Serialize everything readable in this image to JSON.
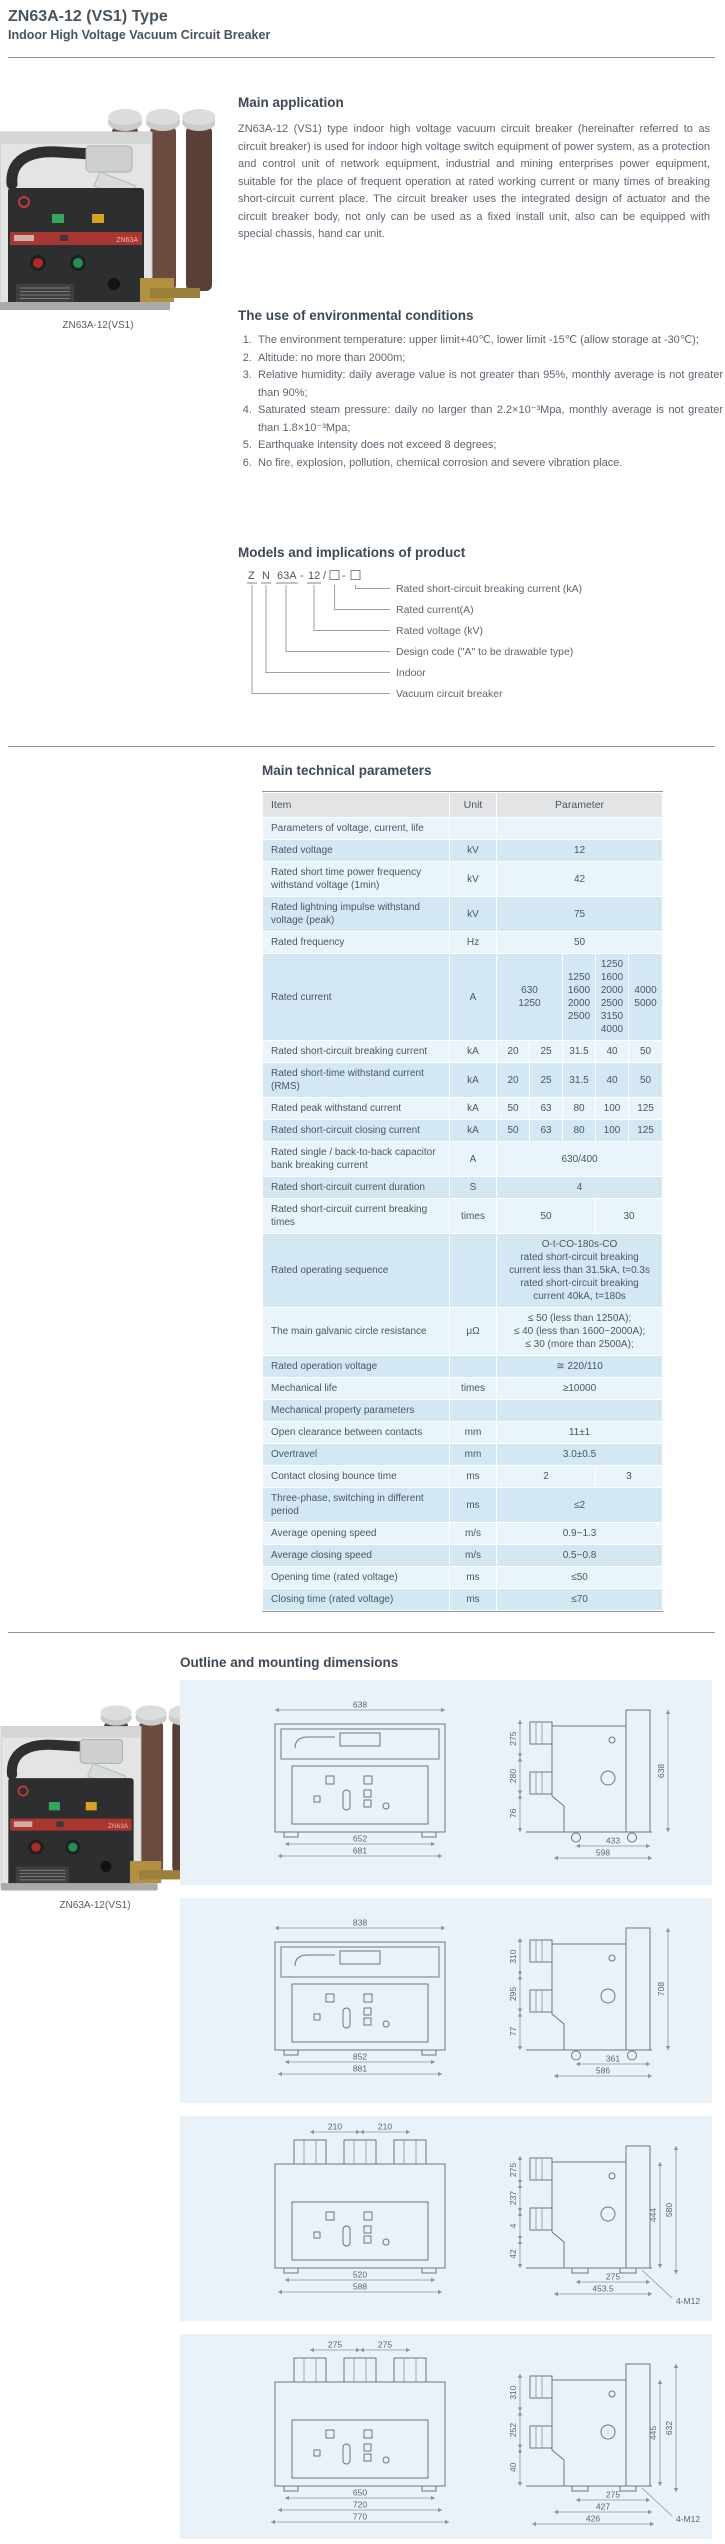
{
  "page": {
    "title": "ZN63A-12 (VS1) Type",
    "subtitle": "Indoor High Voltage Vacuum Circuit Breaker"
  },
  "photo": {
    "caption": "ZN63A-12(VS1)",
    "badge": "ZN63A"
  },
  "sections": {
    "main_application": {
      "heading": "Main application",
      "body": "ZN63A-12 (VS1) type indoor high voltage vacuum circuit breaker (hereinafter referred to as circuit breaker) is used for indoor high voltage switch equipment of power system, as a protection and control unit of network equipment, industrial and mining enterprises power equipment, suitable for the place of frequent operation at rated working current or many times of breaking short-circuit current place. The circuit breaker uses the integrated design of actuator and the circuit breaker body, not only can be used as a fixed install unit, also can be equipped with special chassis, hand car unit."
    },
    "environment": {
      "heading": "The use of environmental conditions",
      "items": [
        "The environment temperature: upper limit+40℃, lower limit -15℃ (allow storage at -30℃);",
        "Altitude: no more than 2000m;",
        "Relative humidity: daily average value is not greater than 95%, monthly average is not greater than 90%;",
        "Saturated steam pressure: daily no larger than 2.2×10⁻³Mpa, monthly average is not greater than 1.8×10⁻³Mpa;",
        "Earthquake intensity does not exceed 8 degrees;",
        "No fire, explosion, pollution, chemical corrosion and severe vibration place."
      ]
    },
    "models": {
      "heading": "Models and implications of product",
      "code": {
        "part1": "Z",
        "part2": "N",
        "part3": "63A",
        "sep1": "-",
        "part4": "12",
        "sep2": "/",
        "sep3": "-"
      },
      "labels": [
        "Rated short-circuit breaking current (kA)",
        "Rated current(A)",
        "Rated voltage (kV)",
        "Design code (\"A\" to be drawable type)",
        "Indoor",
        "Vacuum circuit breaker"
      ]
    },
    "parameters": {
      "heading": "Main technical parameters",
      "table": {
        "headers": {
          "item": "Item",
          "unit": "Unit",
          "param": "Parameter"
        },
        "rows": [
          {
            "item": "Parameters of voltage, current, life",
            "unit": "",
            "cells": [
              {
                "t": "",
                "s": 5
              }
            ]
          },
          {
            "item": "Rated voltage",
            "unit": "kV",
            "cells": [
              {
                "t": "12",
                "s": 5
              }
            ]
          },
          {
            "item": "Rated short time power frequency withstand voltage (1min)",
            "unit": "kV",
            "cells": [
              {
                "t": "42",
                "s": 5
              }
            ]
          },
          {
            "item": "Rated lightning impulse withstand voltage (peak)",
            "unit": "kV",
            "cells": [
              {
                "t": "75",
                "s": 5
              }
            ]
          },
          {
            "item": "Rated frequency",
            "unit": "Hz",
            "cells": [
              {
                "t": "50",
                "s": 5
              }
            ]
          },
          {
            "item": "Rated current",
            "unit": "A",
            "cells": [
              {
                "t": "630\n1250",
                "s": 2
              },
              {
                "t": "1250\n1600\n2000\n2500",
                "s": 1
              },
              {
                "t": "1250\n1600\n2000\n2500\n3150\n4000",
                "s": 1
              },
              {
                "t": "4000\n5000",
                "s": 1
              }
            ]
          },
          {
            "item": "Rated short-circuit breaking current",
            "unit": "kA",
            "cells": [
              {
                "t": "20",
                "s": 1
              },
              {
                "t": "25",
                "s": 1
              },
              {
                "t": "31.5",
                "s": 1
              },
              {
                "t": "40",
                "s": 1
              },
              {
                "t": "50",
                "s": 1
              }
            ]
          },
          {
            "item": "Rated short-time withstand current (RMS)",
            "unit": "kA",
            "cells": [
              {
                "t": "20",
                "s": 1
              },
              {
                "t": "25",
                "s": 1
              },
              {
                "t": "31.5",
                "s": 1
              },
              {
                "t": "40",
                "s": 1
              },
              {
                "t": "50",
                "s": 1
              }
            ]
          },
          {
            "item": "Rated peak withstand current",
            "unit": "kA",
            "cells": [
              {
                "t": "50",
                "s": 1
              },
              {
                "t": "63",
                "s": 1
              },
              {
                "t": "80",
                "s": 1
              },
              {
                "t": "100",
                "s": 1
              },
              {
                "t": "125",
                "s": 1
              }
            ]
          },
          {
            "item": "Rated short-circuit closing current",
            "unit": "kA",
            "cells": [
              {
                "t": "50",
                "s": 1
              },
              {
                "t": "63",
                "s": 1
              },
              {
                "t": "80",
                "s": 1
              },
              {
                "t": "100",
                "s": 1
              },
              {
                "t": "125",
                "s": 1
              }
            ]
          },
          {
            "item": "Rated single / back-to-back capacitor bank breaking current",
            "unit": "A",
            "cells": [
              {
                "t": "630/400",
                "s": 5
              }
            ]
          },
          {
            "item": "Rated short-circuit current duration",
            "unit": "S",
            "cells": [
              {
                "t": "4",
                "s": 5
              }
            ]
          },
          {
            "item": "Rated short-circuit current breaking times",
            "unit": "times",
            "cells": [
              {
                "t": "50",
                "s": 3
              },
              {
                "t": "30",
                "s": 2
              }
            ]
          },
          {
            "item": "Rated operating sequence",
            "unit": "",
            "cells": [
              {
                "t": "O-t-CO-180s-CO\nrated short-circuit breaking\ncurrent less than 31.5kA, t=0.3s\nrated short-circuit breaking\ncurrent 40kA, t=180s",
                "s": 5
              }
            ]
          },
          {
            "item": "The main galvanic circle resistance",
            "unit": "μΩ",
            "cells": [
              {
                "t": "≤ 50 (less than 1250A);\n≤ 40 (less than 1600~2000A);\n≤ 30 (more than 2500A);",
                "s": 5
              }
            ]
          },
          {
            "item": "Rated operation voltage",
            "unit": "",
            "cells": [
              {
                "t": "≅ 220/110",
                "s": 5
              }
            ]
          },
          {
            "item": "Mechanical life",
            "unit": "times",
            "cells": [
              {
                "t": "≥10000",
                "s": 5
              }
            ]
          },
          {
            "item": "Mechanical property parameters",
            "unit": "",
            "cells": [
              {
                "t": "",
                "s": 5
              }
            ]
          },
          {
            "item": "Open clearance between contacts",
            "unit": "mm",
            "cells": [
              {
                "t": "11±1",
                "s": 5
              }
            ]
          },
          {
            "item": "Overtravel",
            "unit": "mm",
            "cells": [
              {
                "t": "3.0±0.5",
                "s": 5
              }
            ]
          },
          {
            "item": "Contact closing bounce time",
            "unit": "ms",
            "cells": [
              {
                "t": "2",
                "s": 3
              },
              {
                "t": "3",
                "s": 2
              }
            ]
          },
          {
            "item": "Three-phase, switching in different period",
            "unit": "ms",
            "cells": [
              {
                "t": "≤2",
                "s": 5
              }
            ]
          },
          {
            "item": "Average opening speed",
            "unit": "m/s",
            "cells": [
              {
                "t": "0.9~1.3",
                "s": 5
              }
            ]
          },
          {
            "item": "Average closing speed",
            "unit": "m/s",
            "cells": [
              {
                "t": "0.5~0.8",
                "s": 5
              }
            ]
          },
          {
            "item": "Opening time (rated voltage)",
            "unit": "ms",
            "cells": [
              {
                "t": "≤50",
                "s": 5
              }
            ]
          },
          {
            "item": "Closing time (rated voltage)",
            "unit": "ms",
            "cells": [
              {
                "t": "≤70",
                "s": 5
              }
            ]
          }
        ]
      }
    },
    "outline": {
      "heading": "Outline and mounting dimensions",
      "panels": [
        {
          "front": {
            "style": "frame",
            "top": [
              "638"
            ],
            "bottom": [
              "652",
              "681"
            ]
          },
          "side": {
            "left": [
              "275",
              "280",
              "76"
            ],
            "right": [
              "638"
            ],
            "bottom": [
              "433",
              "598"
            ],
            "note": ""
          }
        },
        {
          "front": {
            "style": "frame",
            "top": [
              "838"
            ],
            "bottom": [
              "852",
              "881"
            ]
          },
          "side": {
            "left": [
              "310",
              "295",
              "77"
            ],
            "right": [
              "708"
            ],
            "bottom": [
              "361",
              "586"
            ],
            "note": ""
          }
        },
        {
          "front": {
            "style": "bushing",
            "top": [
              "210",
              "210"
            ],
            "bottom": [
              "520",
              "588"
            ]
          },
          "side": {
            "left": [
              "275",
              "237",
              "4",
              "42"
            ],
            "right": [
              "444",
              "580"
            ],
            "bottom": [
              "275",
              "453.5"
            ],
            "note": "4-M12"
          }
        },
        {
          "front": {
            "style": "bushing",
            "top": [
              "275",
              "275"
            ],
            "bottom": [
              "650",
              "720",
              "770"
            ]
          },
          "side": {
            "left": [
              "310",
              "252",
              "40"
            ],
            "right": [
              "445",
              "632"
            ],
            "bottom": [
              "275",
              "427",
              "426"
            ],
            "note": "4-M12"
          }
        }
      ]
    }
  }
}
